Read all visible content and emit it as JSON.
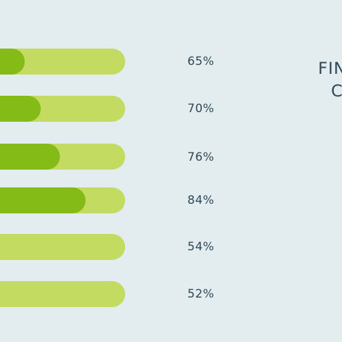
{
  "chart_data": {
    "type": "bar",
    "orientation": "horizontal",
    "title": "FIN",
    "subtitle": "C",
    "values": [
      65,
      70,
      76,
      84,
      54,
      52
    ],
    "labels": [
      "65%",
      "70%",
      "76%",
      "84%",
      "54%",
      "52%"
    ],
    "xlim": [
      0,
      100
    ],
    "colors": {
      "track": "#c3db61",
      "fill": "#84bb17",
      "text": "#2f4858",
      "background": "#e3edef"
    }
  }
}
